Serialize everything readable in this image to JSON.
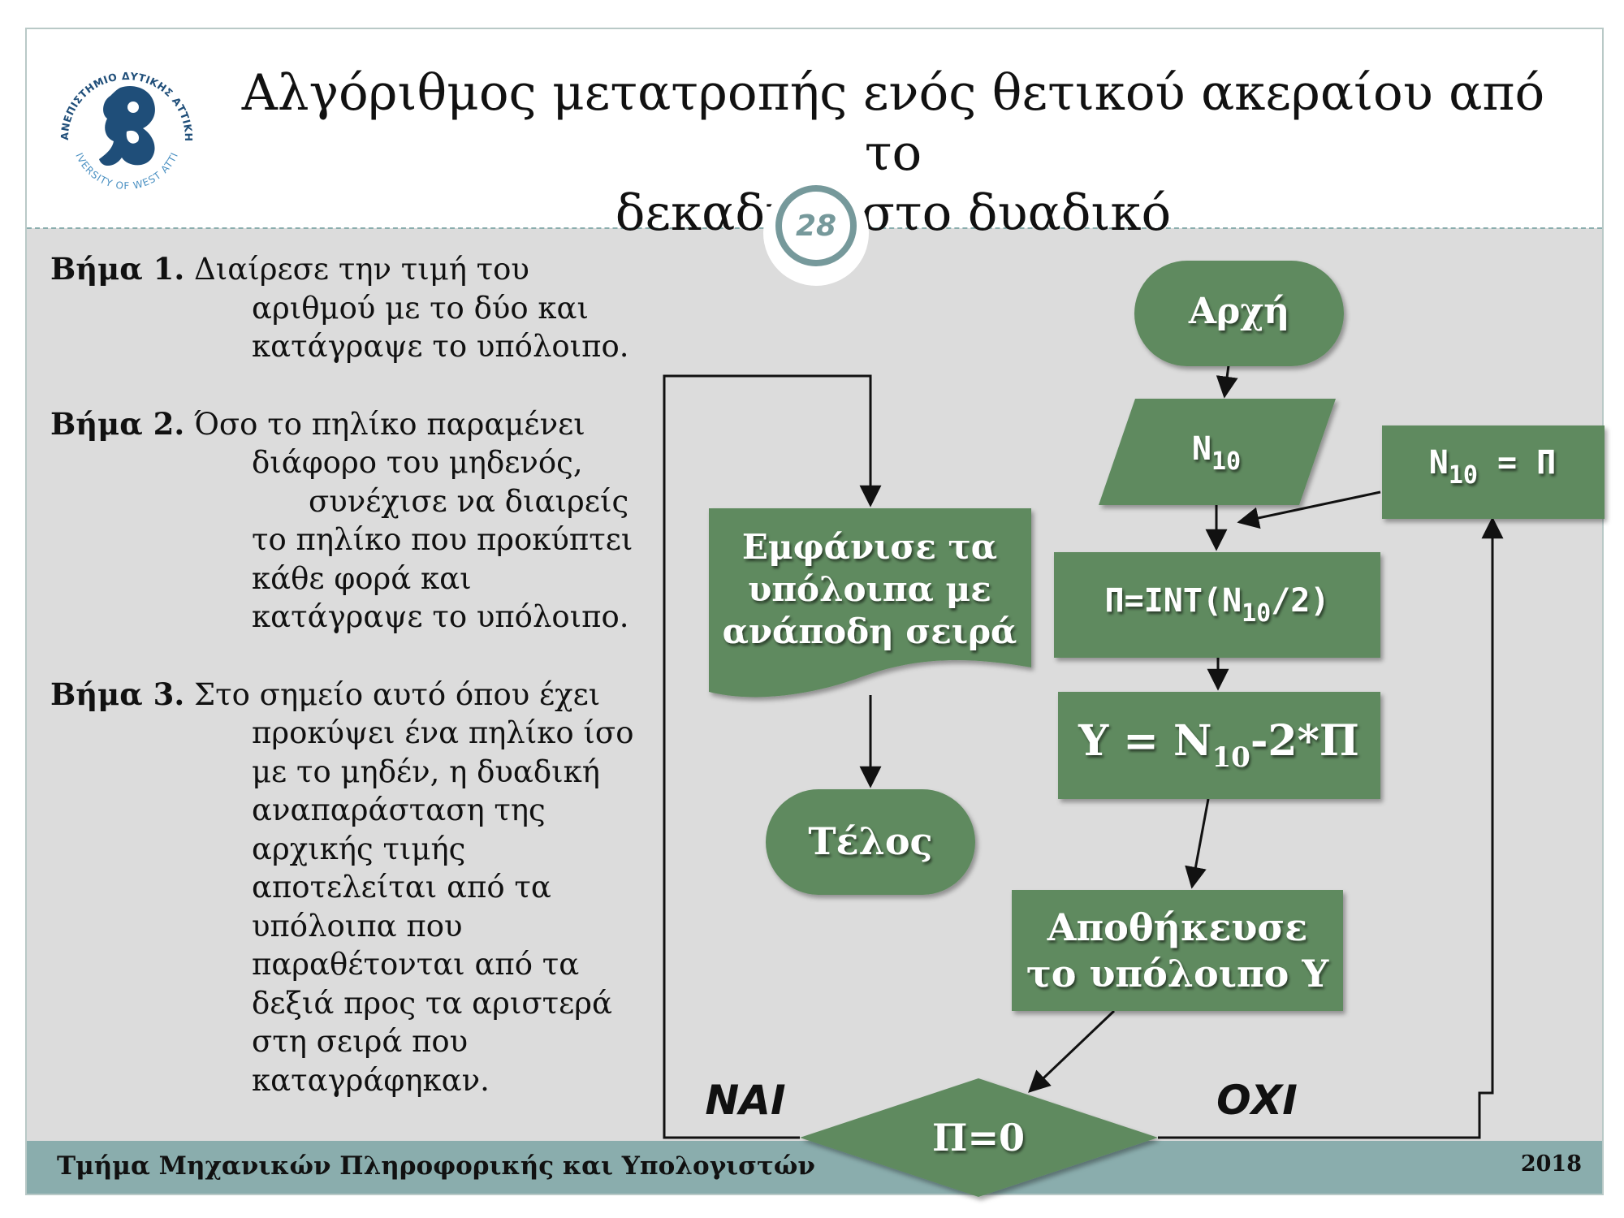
{
  "header": {
    "title_line1": "Αλγόριθμος μετατροπής ενός θετικού ακεραίου από το",
    "title_line2": "δεκαδικό στο δυαδικό",
    "page_number": "28",
    "logo": {
      "top_text": "ΠΑΝΕΠΙΣΤΗΜΙΟ ΔΥΤΙΚΗΣ ΑΤΤΙΚΗΣ",
      "bottom_text": "UNIVERSITY OF WEST ATTICA"
    }
  },
  "steps": [
    {
      "label": "Βήμα 1.",
      "lines": [
        "Διαίρεσε την τιμή του",
        "αριθμού με το δύο και",
        "κατάγραψε το υπόλοιπο."
      ]
    },
    {
      "label": "Βήμα 2.",
      "lines": [
        "Όσο το πηλίκο παραμένει",
        "διάφορο του μηδενός,",
        "συνέχισε να διαιρείς",
        "το πηλίκο που προκύπτει",
        "κάθε φορά και",
        "κατάγραψε το υπόλοιπο."
      ]
    },
    {
      "label": "Βήμα 3.",
      "lines": [
        "Στο σημείο αυτό όπου έχει",
        "προκύψει ένα πηλίκο ίσο",
        "με το μηδέν, η δυαδική",
        "αναπαράσταση της",
        "αρχικής τιμής",
        "αποτελείται από τα",
        "υπόλοιπα που",
        "παραθέτονται από τα",
        "δεξιά προς τα αριστερά",
        "στη σειρά που",
        "καταγράφηκαν."
      ]
    }
  ],
  "flowchart": {
    "start": "Αρχή",
    "input": {
      "base": "N",
      "sub": "10"
    },
    "assign_n": {
      "base": "N",
      "sub": "10",
      "rest": " = Π"
    },
    "divide": {
      "pre": "Π=INT(N",
      "sub": "10",
      "post": "/2)"
    },
    "remainder": {
      "pre": "Y = N",
      "sub": "10",
      "post": "-2*Π"
    },
    "store_line1": "Αποθήκευσε",
    "store_line2": "το υπόλοιπο Υ",
    "decision": "Π=0",
    "display_line1": "Εμφάνισε τα",
    "display_line2": "υπόλοιπα με",
    "display_line3": "ανάποδη σειρά",
    "end": "Τέλος",
    "yes_label": "ΝΑΙ",
    "no_label": "ΟΧΙ",
    "node_color": "#5f8a5f"
  },
  "footer": {
    "department": "Τμήμα Μηχανικών Πληροφορικής και Υπολογιστών",
    "year": "2018"
  }
}
